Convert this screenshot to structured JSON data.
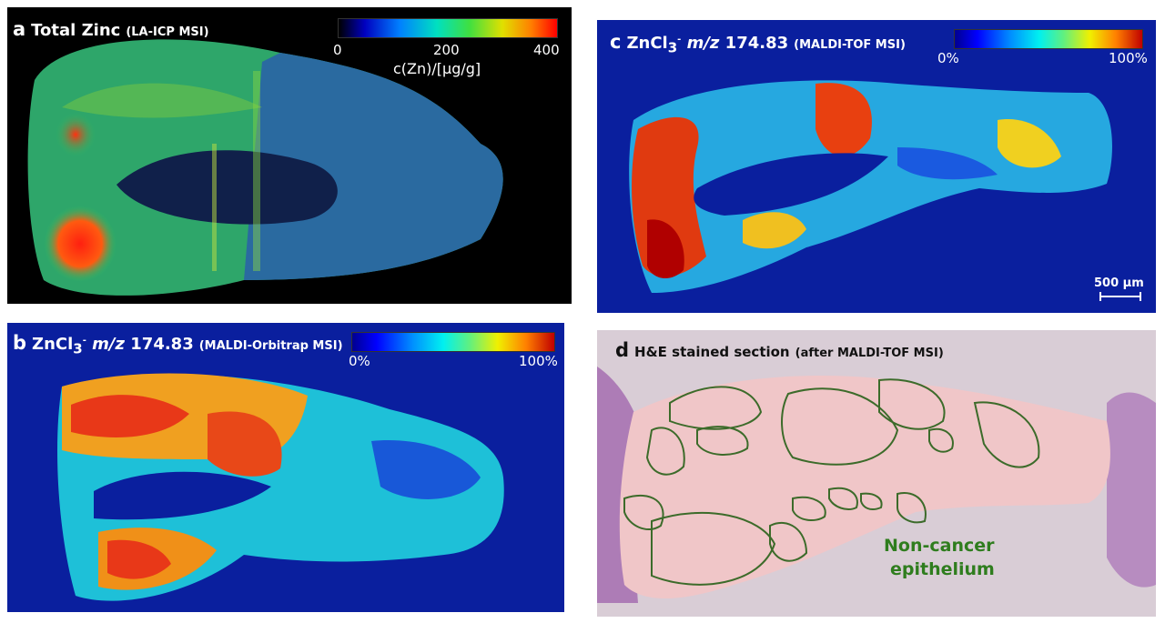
{
  "panel_a": {
    "letter": "a",
    "title": "Total Zinc",
    "subtitle": "(LA-ICP MSI)",
    "colorbar": {
      "ticks": [
        "0",
        "200",
        "400"
      ],
      "label": "c(Zn)/[µg/g]"
    }
  },
  "panel_b": {
    "letter": "b",
    "title_pre": "ZnCl",
    "title_sub": "3",
    "title_sup": "-",
    "title_mz": "m/z",
    "title_value": "174.83",
    "subtitle": "(MALDI-Orbitrap MSI)",
    "colorbar": {
      "min": "0%",
      "max": "100%"
    }
  },
  "panel_c": {
    "letter": "c",
    "title_pre": "ZnCl",
    "title_sub": "3",
    "title_sup": "-",
    "title_mz": "m/z",
    "title_value": "174.83",
    "subtitle": "(MALDI-TOF MSI)",
    "colorbar": {
      "min": "0%",
      "max": "100%"
    },
    "scale_bar": "500 µm"
  },
  "panel_d": {
    "letter": "d",
    "title": "H&E stained section",
    "subtitle": "(after MALDI-TOF MSI)",
    "annotation_line1": "Non-cancer",
    "annotation_line2": "epithelium"
  },
  "colors": {
    "panel_a_bg": "#000000",
    "msi_bg": "#0a1f9e",
    "he_bg": "#d9cdd6",
    "annotation_green": "#2f7d1e",
    "outline_green": "#3c6b2a"
  }
}
